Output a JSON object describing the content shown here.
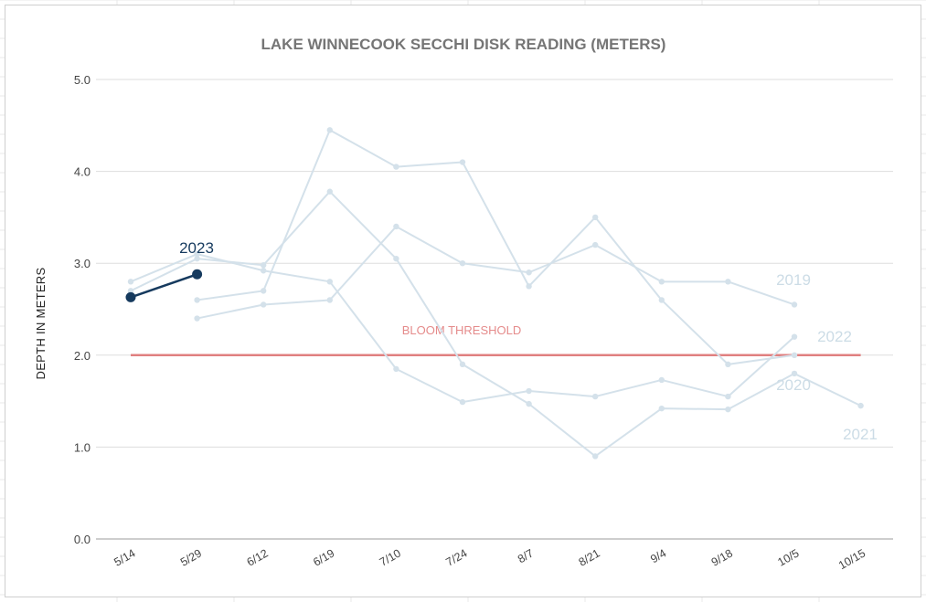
{
  "chart_data": {
    "type": "line",
    "title": "LAKE WINNECOOK SECCHI DISK READING (METERS)",
    "xlabel": "",
    "ylabel": "DEPTH IN METERS",
    "ylim": [
      0,
      5
    ],
    "yticks": [
      "0.0",
      "1.0",
      "2.0",
      "3.0",
      "4.0",
      "5.0"
    ],
    "categories": [
      "5/14",
      "5/29",
      "6/12",
      "6/19",
      "7/10",
      "7/24",
      "8/7",
      "8/21",
      "9/4",
      "9/18",
      "10/5",
      "10/15"
    ],
    "grid": true,
    "legend": "none",
    "series": [
      {
        "name": "2019",
        "color": "#d4e1ea",
        "values": [
          null,
          2.4,
          2.55,
          2.6,
          3.4,
          3.0,
          2.9,
          3.2,
          2.8,
          2.8,
          2.55,
          null
        ]
      },
      {
        "name": "2020",
        "color": "#d4e1ea",
        "values": [
          null,
          2.6,
          2.7,
          4.45,
          4.05,
          4.1,
          2.75,
          3.5,
          2.6,
          1.9,
          2.0,
          null
        ]
      },
      {
        "name": "2021",
        "color": "#d4e1ea",
        "values": [
          2.7,
          3.05,
          2.98,
          3.78,
          3.05,
          1.9,
          1.47,
          0.9,
          1.42,
          1.41,
          1.8,
          1.45
        ]
      },
      {
        "name": "2022",
        "color": "#d4e1ea",
        "values": [
          2.8,
          3.1,
          2.92,
          2.8,
          1.85,
          1.49,
          1.61,
          1.55,
          1.73,
          1.55,
          2.2,
          null
        ]
      },
      {
        "name": "2023",
        "color": "#163a5e",
        "values": [
          2.63,
          2.88,
          null,
          null,
          null,
          null,
          null,
          null,
          null,
          null,
          null,
          null
        ]
      }
    ],
    "reference_lines": [
      {
        "label": "BLOOM THRESHOLD",
        "value": 2.0,
        "color": "#e08080"
      }
    ],
    "colors": {
      "gridline": "#dddddd",
      "axis": "#9e9e9e",
      "label_2023": "#163a5e",
      "label_faded": "#ccdce6"
    }
  }
}
